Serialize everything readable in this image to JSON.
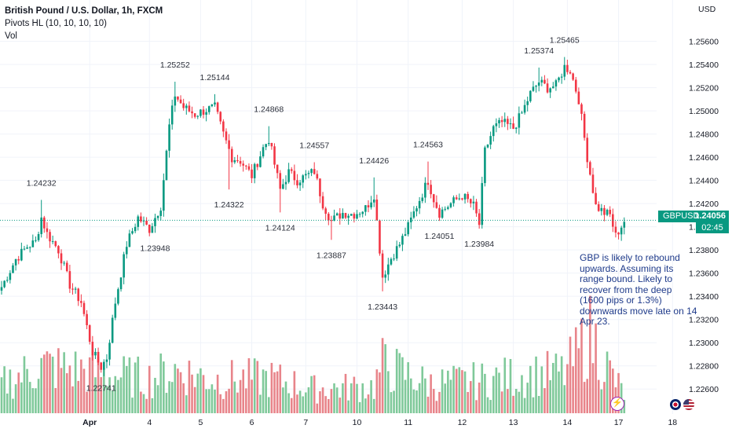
{
  "header": {
    "title": "British Pound / U.S. Dollar, 1h, FXCM",
    "indicator": "Pivots HL (10, 10, 10, 10)",
    "volume_label": "Vol"
  },
  "price_axis": {
    "currency": "USD",
    "ticks": [
      "1.25600",
      "1.25400",
      "1.25200",
      "1.25000",
      "1.24800",
      "1.24600",
      "1.24400",
      "1.24200",
      "1.24000",
      "1.23800",
      "1.23600",
      "1.23400",
      "1.23200",
      "1.23000",
      "1.22800",
      "1.22600"
    ]
  },
  "price_tag": {
    "symbol": "GBPUSD",
    "value": "1.24056",
    "timer": "02:45"
  },
  "annotation": "GBP is likely to rebound upwards. Assuming its range bound. Likely to recover from the deep (1600 pips or 1.3%) downwards move late on 14 Apr 23.",
  "colors": {
    "up": "#089981",
    "down": "#f23645",
    "vol_up": "#7fc99a",
    "vol_down": "#e8848a",
    "grid": "#f0f3fa",
    "text": "#131722",
    "pivot_label": "#2a2e39",
    "current_line": "#089981"
  },
  "icons": [
    "flash-icon",
    "flag-gb-icon",
    "flag-us-icon"
  ],
  "chart_data": {
    "type": "candlestick",
    "title": "British Pound / U.S. Dollar, 1h, FXCM",
    "x_ticks": [
      {
        "i": 31,
        "label": "Apr"
      },
      {
        "i": 52,
        "label": "4"
      },
      {
        "i": 70,
        "label": "5"
      },
      {
        "i": 88,
        "label": "6"
      },
      {
        "i": 107,
        "label": "7"
      },
      {
        "i": 125,
        "label": "10"
      },
      {
        "i": 143,
        "label": "11"
      },
      {
        "i": 162,
        "label": "12"
      },
      {
        "i": 180,
        "label": "13"
      },
      {
        "i": 199,
        "label": "14"
      },
      {
        "i": 217,
        "label": "17"
      },
      {
        "i": 236,
        "label": "18"
      }
    ],
    "ylim": [
      1.2252,
      1.2574
    ],
    "current_price": 1.24056,
    "pivots": [
      {
        "label": "1.24232",
        "price": 1.24232,
        "i": 14,
        "pos": "high"
      },
      {
        "label": "1.22741",
        "price": 1.22741,
        "i": 35,
        "pos": "low"
      },
      {
        "label": "1.25252",
        "price": 1.25252,
        "i": 61,
        "pos": "high"
      },
      {
        "label": "1.23948",
        "price": 1.23948,
        "i": 54,
        "pos": "low"
      },
      {
        "label": "1.25144",
        "price": 1.25144,
        "i": 75,
        "pos": "high"
      },
      {
        "label": "1.24322",
        "price": 1.24322,
        "i": 80,
        "pos": "low"
      },
      {
        "label": "1.24868",
        "price": 1.24868,
        "i": 94,
        "pos": "high"
      },
      {
        "label": "1.24124",
        "price": 1.24124,
        "i": 98,
        "pos": "low"
      },
      {
        "label": "1.24557",
        "price": 1.24557,
        "i": 110,
        "pos": "high"
      },
      {
        "label": "1.23887",
        "price": 1.23887,
        "i": 116,
        "pos": "low"
      },
      {
        "label": "1.24426",
        "price": 1.24426,
        "i": 131,
        "pos": "high"
      },
      {
        "label": "1.23443",
        "price": 1.23443,
        "i": 134,
        "pos": "low"
      },
      {
        "label": "1.24563",
        "price": 1.24563,
        "i": 150,
        "pos": "high"
      },
      {
        "label": "1.24051",
        "price": 1.24051,
        "i": 154,
        "pos": "low"
      },
      {
        "label": "1.23984",
        "price": 1.23984,
        "i": 168,
        "pos": "low"
      },
      {
        "label": "1.25374",
        "price": 1.25374,
        "i": 189,
        "pos": "high"
      },
      {
        "label": "1.25465",
        "price": 1.25465,
        "i": 198,
        "pos": "high"
      }
    ],
    "waypoints": [
      [
        0,
        1.2348
      ],
      [
        5,
        1.2372
      ],
      [
        9,
        1.2383
      ],
      [
        12,
        1.2387
      ],
      [
        14,
        1.2408
      ],
      [
        16,
        1.2394
      ],
      [
        20,
        1.238
      ],
      [
        24,
        1.235
      ],
      [
        28,
        1.2335
      ],
      [
        32,
        1.2292
      ],
      [
        35,
        1.2279
      ],
      [
        37,
        1.2287
      ],
      [
        40,
        1.2335
      ],
      [
        44,
        1.2385
      ],
      [
        48,
        1.2408
      ],
      [
        52,
        1.2398
      ],
      [
        56,
        1.2418
      ],
      [
        59,
        1.2487
      ],
      [
        61,
        1.2514
      ],
      [
        64,
        1.2503
      ],
      [
        68,
        1.2497
      ],
      [
        72,
        1.2501
      ],
      [
        75,
        1.2503
      ],
      [
        78,
        1.248
      ],
      [
        81,
        1.246
      ],
      [
        84,
        1.2457
      ],
      [
        88,
        1.2444
      ],
      [
        92,
        1.2468
      ],
      [
        94,
        1.2476
      ],
      [
        98,
        1.2432
      ],
      [
        101,
        1.2447
      ],
      [
        104,
        1.244
      ],
      [
        108,
        1.2445
      ],
      [
        110,
        1.2448
      ],
      [
        113,
        1.242
      ],
      [
        116,
        1.2405
      ],
      [
        120,
        1.2412
      ],
      [
        124,
        1.2411
      ],
      [
        128,
        1.2416
      ],
      [
        131,
        1.2428
      ],
      [
        134,
        1.2357
      ],
      [
        137,
        1.2373
      ],
      [
        140,
        1.2385
      ],
      [
        143,
        1.24
      ],
      [
        146,
        1.2418
      ],
      [
        150,
        1.244
      ],
      [
        152,
        1.2424
      ],
      [
        154,
        1.2412
      ],
      [
        158,
        1.242
      ],
      [
        162,
        1.2427
      ],
      [
        166,
        1.2418
      ],
      [
        168,
        1.2402
      ],
      [
        170,
        1.2465
      ],
      [
        173,
        1.2485
      ],
      [
        176,
        1.249
      ],
      [
        180,
        1.2485
      ],
      [
        183,
        1.2498
      ],
      [
        186,
        1.2515
      ],
      [
        189,
        1.2525
      ],
      [
        192,
        1.252
      ],
      [
        195,
        1.2522
      ],
      [
        198,
        1.2538
      ],
      [
        200,
        1.2535
      ],
      [
        203,
        1.251
      ],
      [
        206,
        1.246
      ],
      [
        209,
        1.2418
      ],
      [
        212,
        1.2412
      ],
      [
        214,
        1.241
      ],
      [
        216,
        1.2392
      ],
      [
        219,
        1.2405
      ]
    ],
    "volume_profile": [
      [
        0,
        22
      ],
      [
        14,
        35
      ],
      [
        28,
        32
      ],
      [
        40,
        28
      ],
      [
        52,
        26
      ],
      [
        61,
        32
      ],
      [
        75,
        25
      ],
      [
        94,
        26
      ],
      [
        110,
        18
      ],
      [
        131,
        20
      ],
      [
        134,
        36
      ],
      [
        150,
        22
      ],
      [
        168,
        24
      ],
      [
        183,
        28
      ],
      [
        198,
        30
      ],
      [
        203,
        44
      ],
      [
        206,
        60
      ],
      [
        210,
        48
      ],
      [
        214,
        30
      ],
      [
        219,
        14
      ]
    ]
  }
}
